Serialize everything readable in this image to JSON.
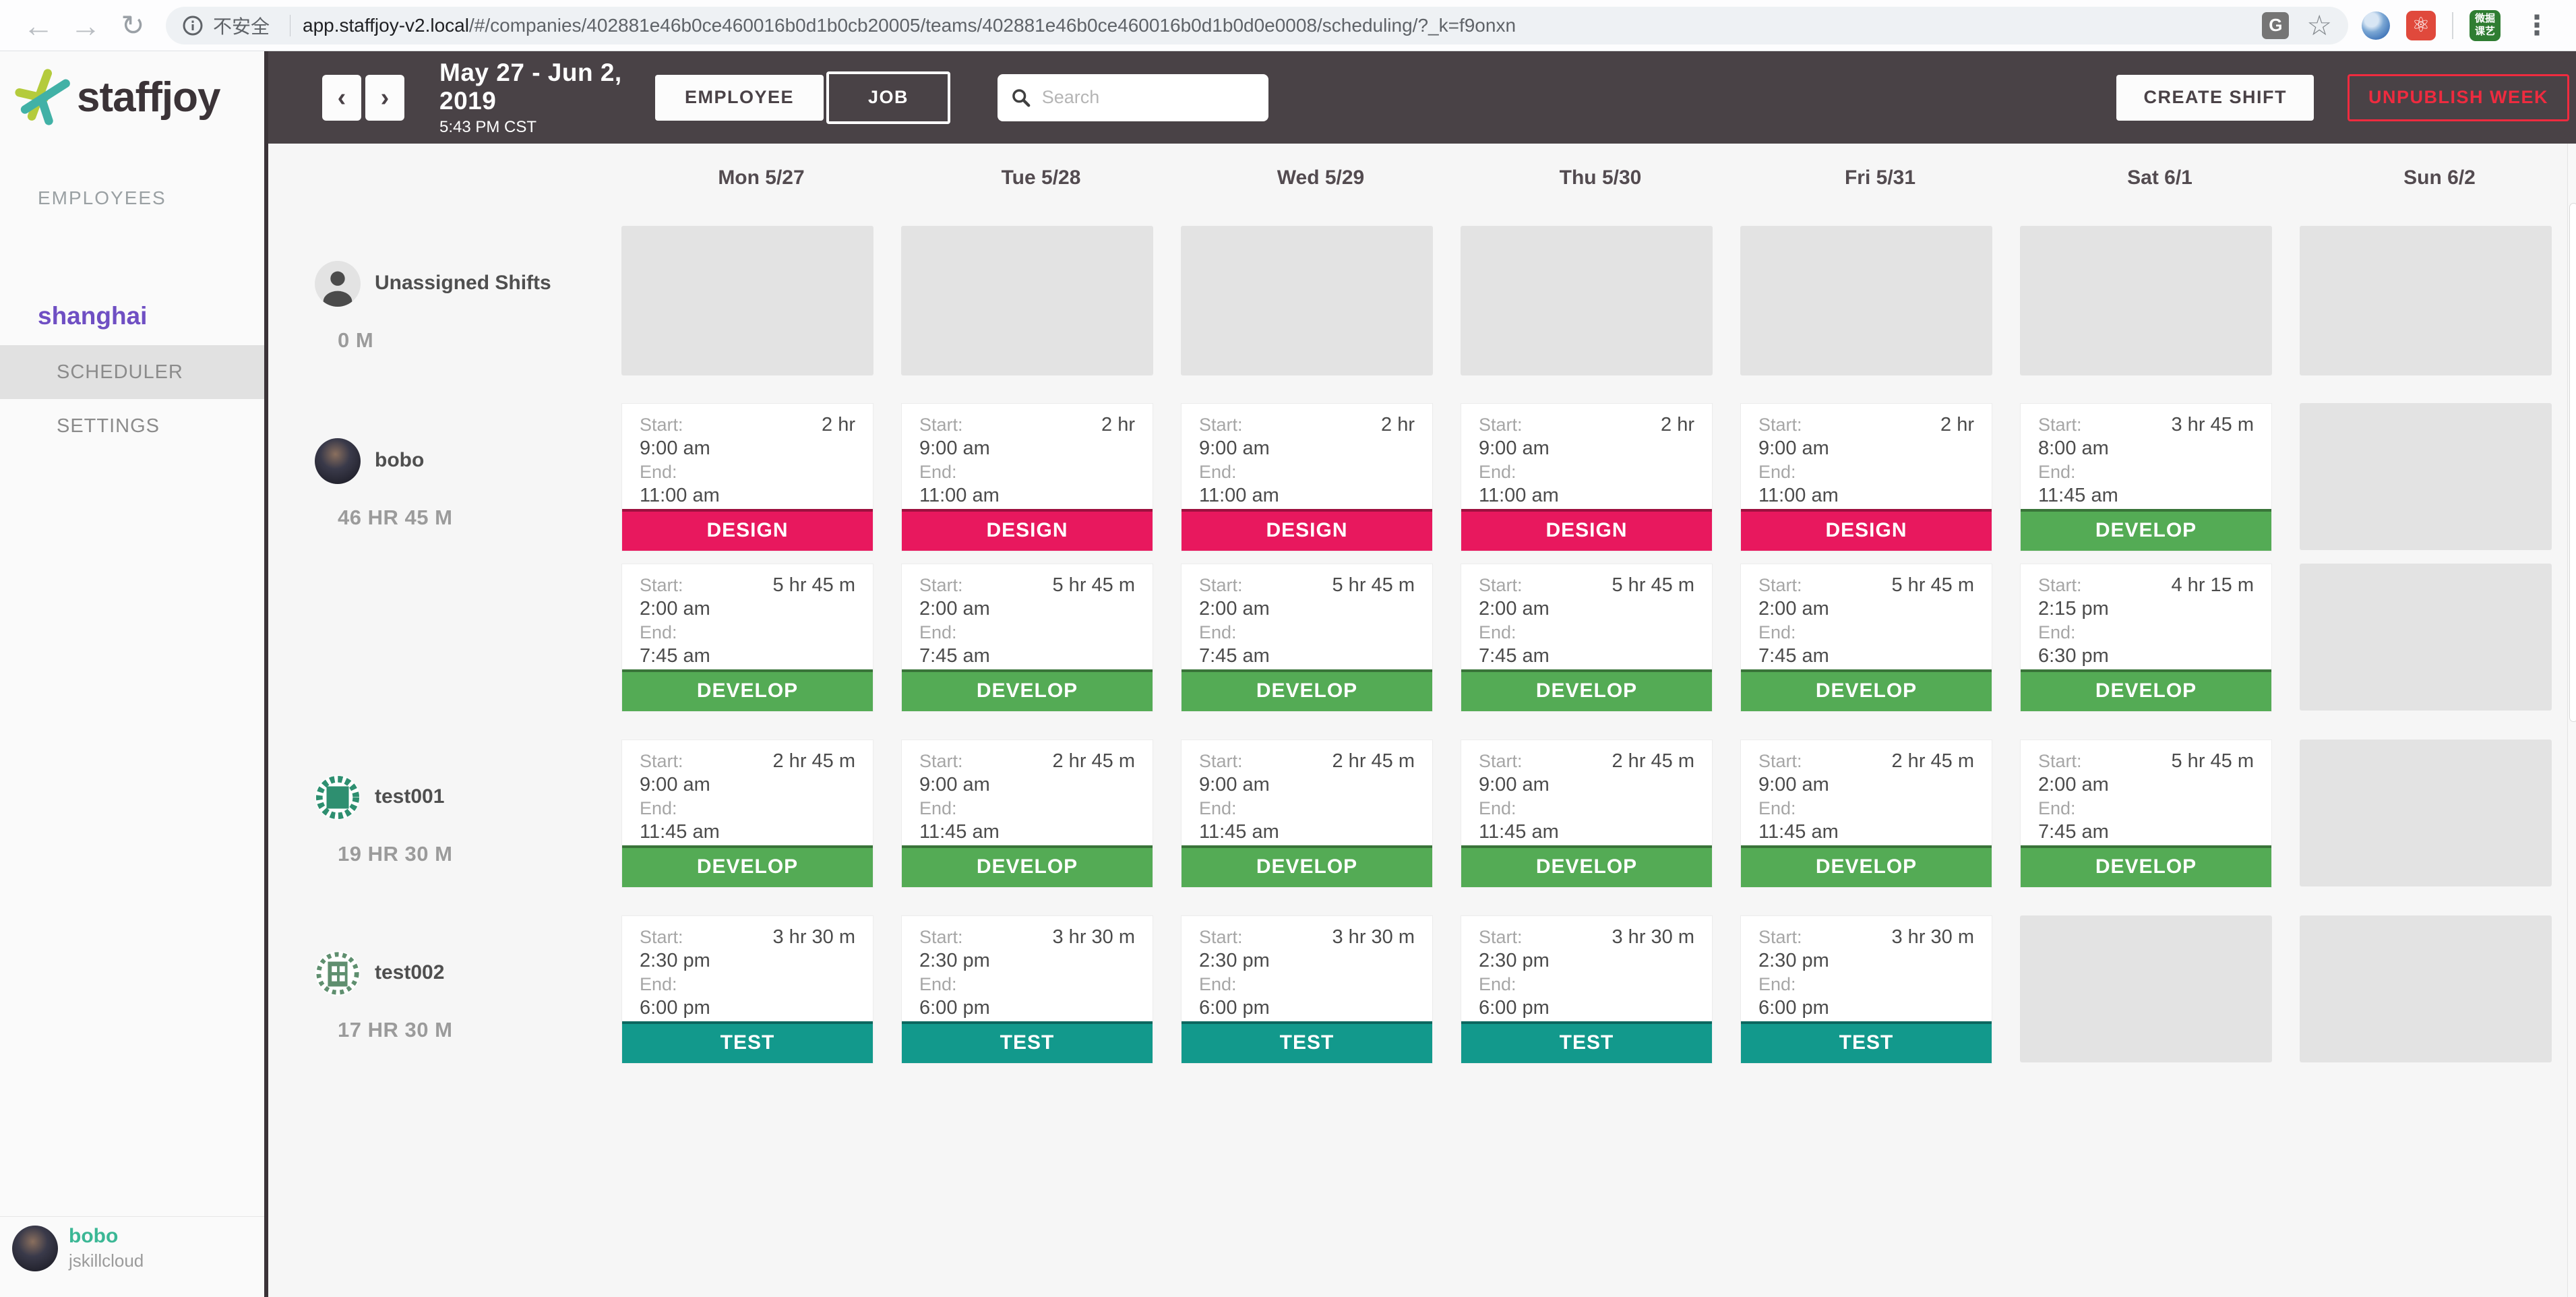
{
  "browser": {
    "security_label": "不安全",
    "url_host": "app.staffjoy-v2.local",
    "url_path": "/#/companies/402881e46b0ce460016b0d1b0cb20005/teams/402881e46b0ce460016b0d1b0d0e0008/scheduling/?_k=f9onxn",
    "ext_badge_line1": "微掘",
    "ext_badge_line2": "课艺"
  },
  "topbar": {
    "prev_label": "‹",
    "next_label": "›",
    "date_range": "May 27 - Jun 2, 2019",
    "time": "5:43 PM CST",
    "employee_label": "EMPLOYEE",
    "job_label": "JOB",
    "search_placeholder": "Search",
    "create_shift_label": "CREATE SHIFT",
    "unpublish_week_label": "UNPUBLISH WEEK"
  },
  "sidebar": {
    "logo_text": "staffjoy",
    "employees_label": "EMPLOYEES",
    "team_name": "shanghai",
    "scheduler_label": "SCHEDULER",
    "settings_label": "SETTINGS",
    "user_name": "bobo",
    "user_company": "jskillcloud"
  },
  "calendar": {
    "days": [
      "Mon 5/27",
      "Tue 5/28",
      "Wed 5/29",
      "Thu 5/30",
      "Fri 5/31",
      "Sat 6/1",
      "Sun 6/2"
    ],
    "field_labels": {
      "start": "Start:",
      "end": "End:"
    },
    "job_colors": {
      "DESIGN": "#e8185e",
      "DEVELOP": "#54ab55",
      "TEST": "#12998c"
    },
    "rows": [
      {
        "name": "Unassigned Shifts",
        "total": "0 M",
        "avatar": "silhouette",
        "lanes": [
          [
            null,
            null,
            null,
            null,
            null,
            null,
            null
          ]
        ]
      },
      {
        "name": "bobo",
        "total": "46 HR 45 M",
        "avatar": "photo",
        "lanes": [
          [
            {
              "start": "9:00 am",
              "end": "11:00 am",
              "duration": "2 hr",
              "job": "DESIGN"
            },
            {
              "start": "9:00 am",
              "end": "11:00 am",
              "duration": "2 hr",
              "job": "DESIGN"
            },
            {
              "start": "9:00 am",
              "end": "11:00 am",
              "duration": "2 hr",
              "job": "DESIGN"
            },
            {
              "start": "9:00 am",
              "end": "11:00 am",
              "duration": "2 hr",
              "job": "DESIGN"
            },
            {
              "start": "9:00 am",
              "end": "11:00 am",
              "duration": "2 hr",
              "job": "DESIGN"
            },
            {
              "start": "8:00 am",
              "end": "11:45 am",
              "duration": "3 hr 45 m",
              "job": "DEVELOP"
            },
            null
          ],
          [
            {
              "start": "2:00 am",
              "end": "7:45 am",
              "duration": "5 hr 45 m",
              "job": "DEVELOP"
            },
            {
              "start": "2:00 am",
              "end": "7:45 am",
              "duration": "5 hr 45 m",
              "job": "DEVELOP"
            },
            {
              "start": "2:00 am",
              "end": "7:45 am",
              "duration": "5 hr 45 m",
              "job": "DEVELOP"
            },
            {
              "start": "2:00 am",
              "end": "7:45 am",
              "duration": "5 hr 45 m",
              "job": "DEVELOP"
            },
            {
              "start": "2:00 am",
              "end": "7:45 am",
              "duration": "5 hr 45 m",
              "job": "DEVELOP"
            },
            {
              "start": "2:15 pm",
              "end": "6:30 pm",
              "duration": "4 hr 15 m",
              "job": "DEVELOP"
            },
            null
          ]
        ]
      },
      {
        "name": "test001",
        "total": "19 HR 30 M",
        "avatar": "identicon-blocks",
        "lanes": [
          [
            {
              "start": "9:00 am",
              "end": "11:45 am",
              "duration": "2 hr 45 m",
              "job": "DEVELOP"
            },
            {
              "start": "9:00 am",
              "end": "11:45 am",
              "duration": "2 hr 45 m",
              "job": "DEVELOP"
            },
            {
              "start": "9:00 am",
              "end": "11:45 am",
              "duration": "2 hr 45 m",
              "job": "DEVELOP"
            },
            {
              "start": "9:00 am",
              "end": "11:45 am",
              "duration": "2 hr 45 m",
              "job": "DEVELOP"
            },
            {
              "start": "9:00 am",
              "end": "11:45 am",
              "duration": "2 hr 45 m",
              "job": "DEVELOP"
            },
            {
              "start": "2:00 am",
              "end": "7:45 am",
              "duration": "5 hr 45 m",
              "job": "DEVELOP"
            },
            null
          ]
        ]
      },
      {
        "name": "test002",
        "total": "17 HR 30 M",
        "avatar": "identicon-grid",
        "lanes": [
          [
            {
              "start": "2:30 pm",
              "end": "6:00 pm",
              "duration": "3 hr 30 m",
              "job": "TEST"
            },
            {
              "start": "2:30 pm",
              "end": "6:00 pm",
              "duration": "3 hr 30 m",
              "job": "TEST"
            },
            {
              "start": "2:30 pm",
              "end": "6:00 pm",
              "duration": "3 hr 30 m",
              "job": "TEST"
            },
            {
              "start": "2:30 pm",
              "end": "6:00 pm",
              "duration": "3 hr 30 m",
              "job": "TEST"
            },
            {
              "start": "2:30 pm",
              "end": "6:00 pm",
              "duration": "3 hr 30 m",
              "job": "TEST"
            },
            null,
            null
          ]
        ]
      }
    ]
  }
}
